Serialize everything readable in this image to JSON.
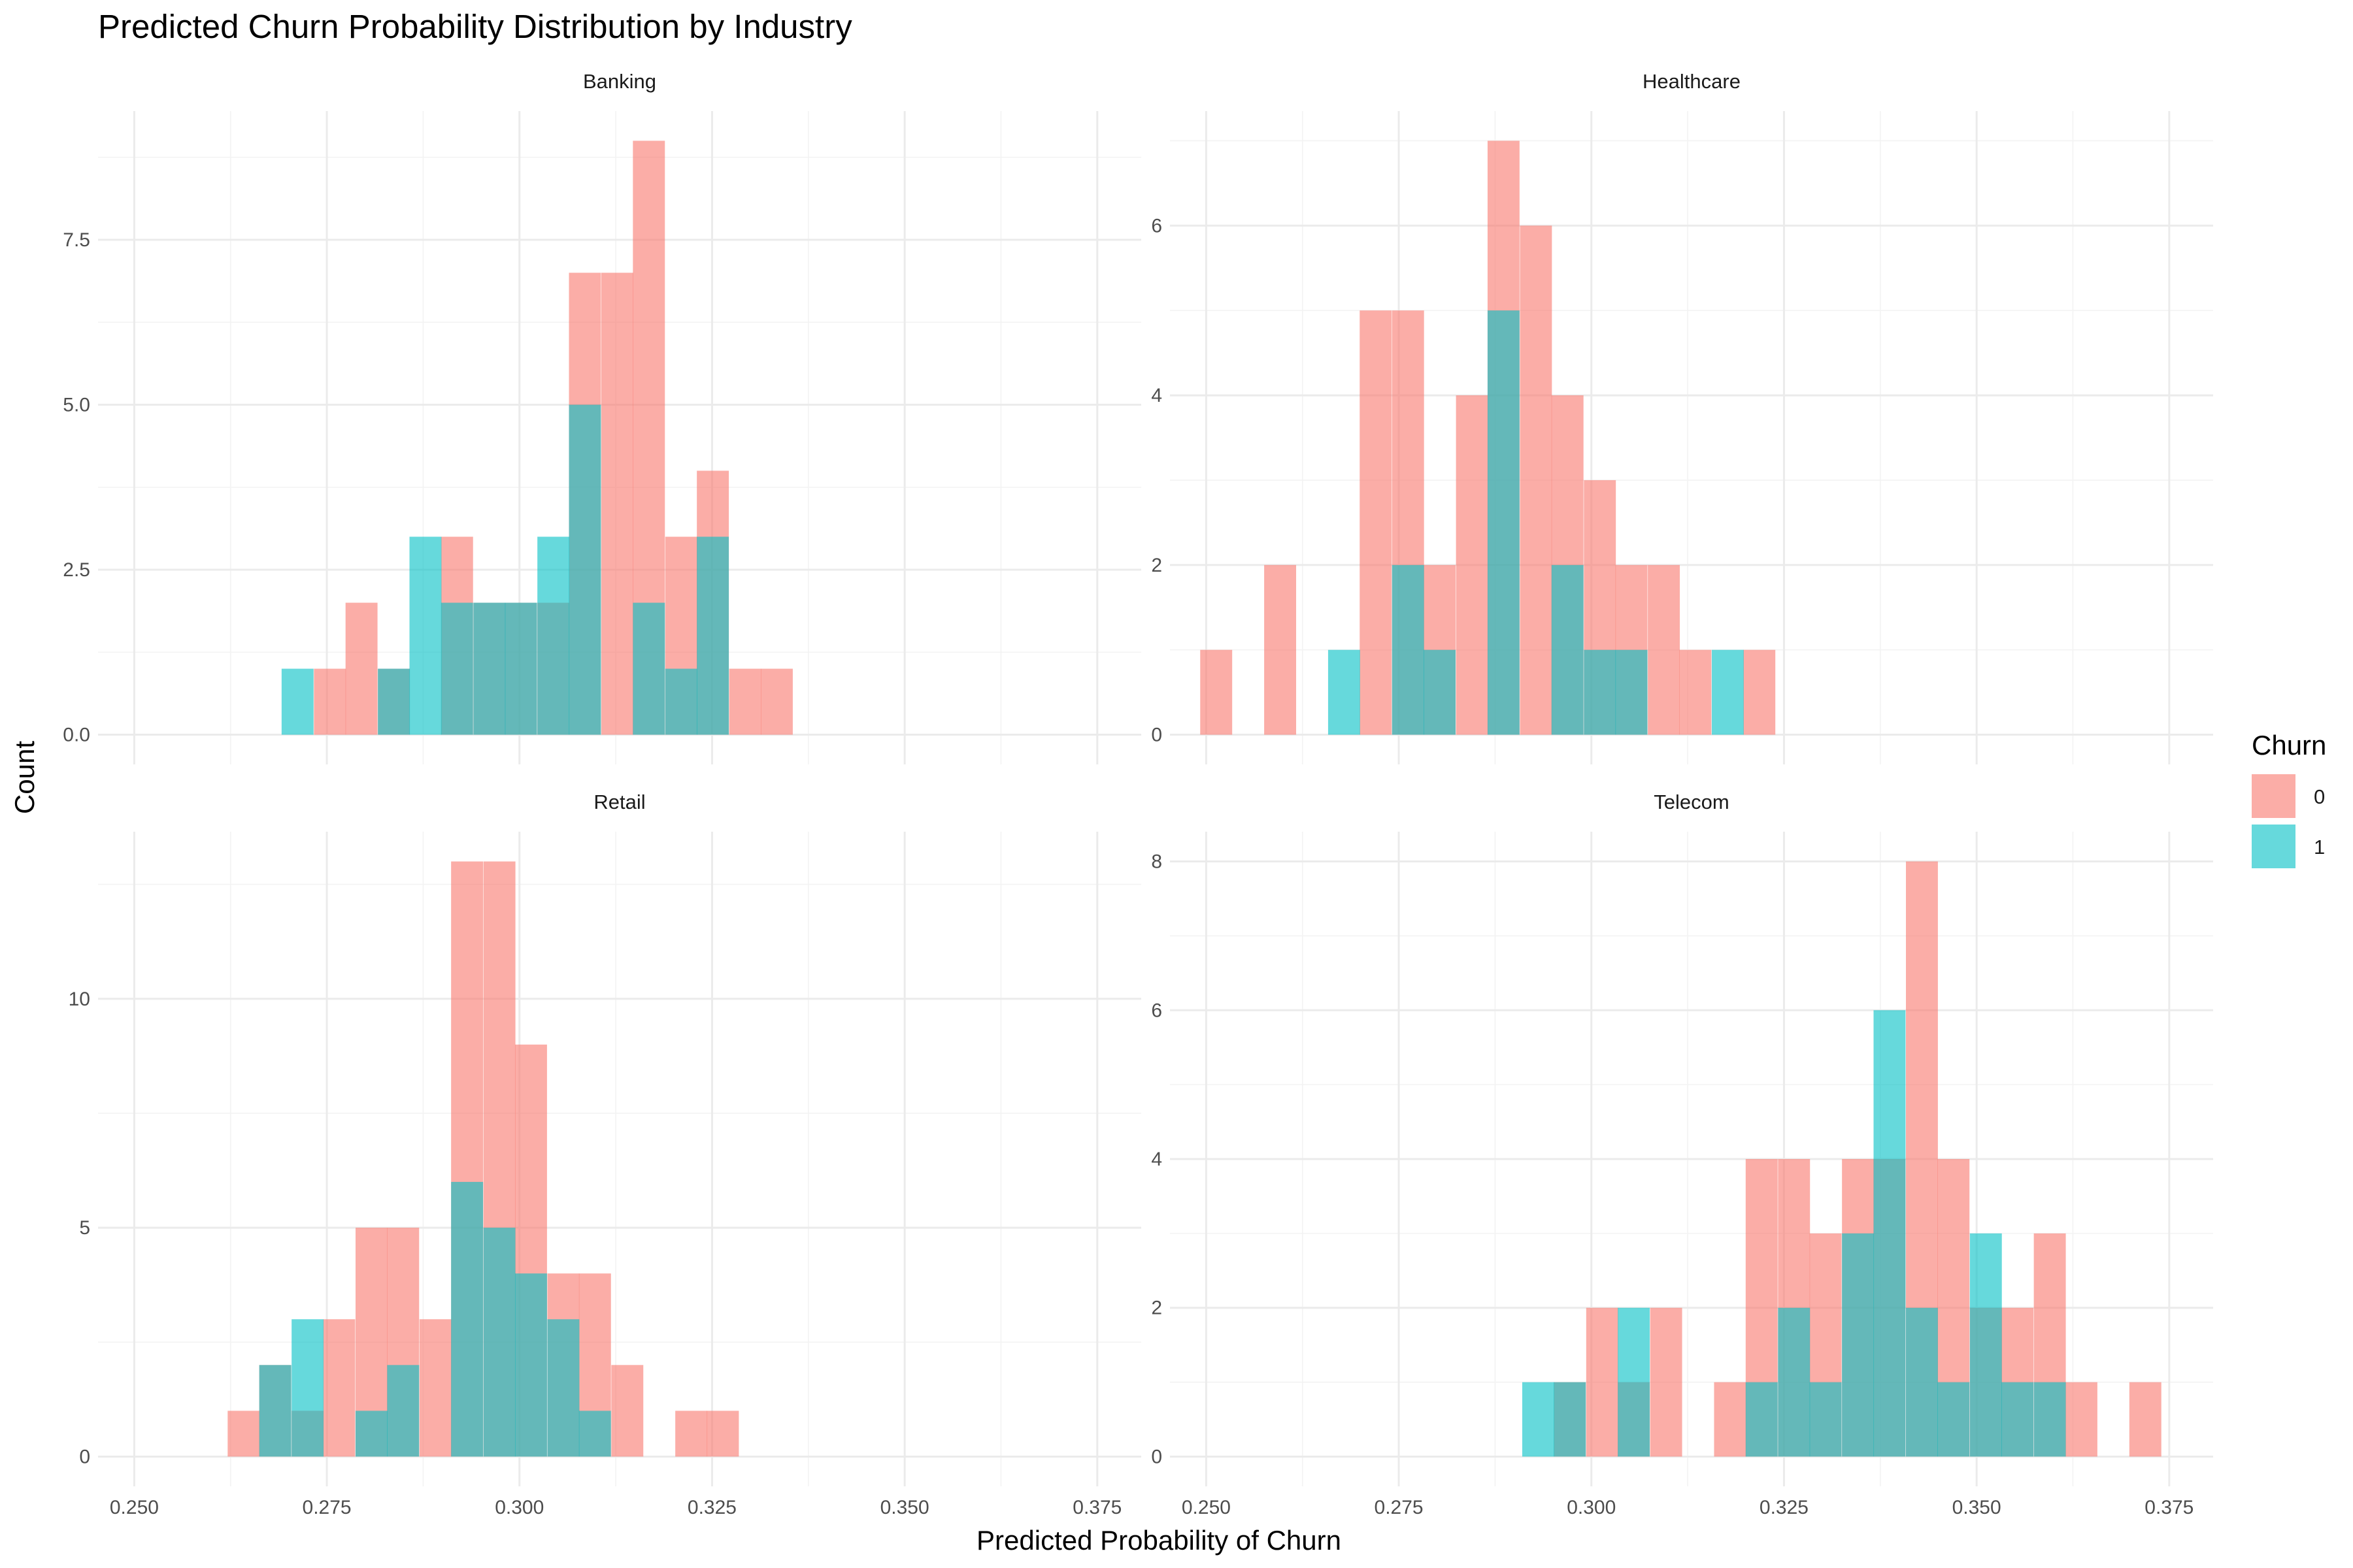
{
  "chart_data": {
    "type": "histogram",
    "title": "Predicted Churn Probability Distribution by Industry",
    "xlabel": "Predicted Probability of Churn",
    "ylabel": "Count",
    "xlim": [
      0.2453,
      0.3807
    ],
    "x_ticks": [
      0.25,
      0.275,
      0.3,
      0.325,
      0.35,
      0.375
    ],
    "x_tick_labels": [
      "0.250",
      "0.275",
      "0.300",
      "0.325",
      "0.350",
      "0.375"
    ],
    "bin_width": 0.00415,
    "legend": {
      "title": "Churn",
      "position": "right",
      "entries": [
        {
          "label": "0",
          "color": "#F8766D"
        },
        {
          "label": "1",
          "color": "#00BFC4"
        }
      ]
    },
    "facets": [
      {
        "label": "Banking",
        "ylim": [
          -0.45,
          9.45
        ],
        "y_ticks": [
          0,
          2.5,
          5,
          7.5
        ],
        "y_tick_labels": [
          "0.0",
          "2.5",
          "5.0",
          "7.5"
        ],
        "series": [
          {
            "name": "0",
            "bins": [
              [
                0.2754,
                1
              ],
              [
                0.2795,
                2
              ],
              [
                0.2837,
                1
              ],
              [
                0.2919,
                3
              ],
              [
                0.2961,
                2
              ],
              [
                0.3002,
                2
              ],
              [
                0.3044,
                2
              ],
              [
                0.3085,
                7
              ],
              [
                0.3127,
                7
              ],
              [
                0.3168,
                9
              ],
              [
                0.321,
                3
              ],
              [
                0.3251,
                4
              ],
              [
                0.3293,
                1
              ],
              [
                0.3334,
                1
              ]
            ]
          },
          {
            "name": "1",
            "bins": [
              [
                0.2712,
                1
              ],
              [
                0.2837,
                1
              ],
              [
                0.2878,
                3
              ],
              [
                0.2919,
                2
              ],
              [
                0.2961,
                2
              ],
              [
                0.3002,
                2
              ],
              [
                0.3044,
                3
              ],
              [
                0.3085,
                5
              ],
              [
                0.3168,
                2
              ],
              [
                0.321,
                1
              ],
              [
                0.3251,
                3
              ]
            ]
          }
        ]
      },
      {
        "label": "Healthcare",
        "ylim": [
          -0.35,
          7.35
        ],
        "y_ticks": [
          0,
          2,
          4,
          6
        ],
        "y_tick_labels": [
          "0",
          "2",
          "4",
          "6"
        ],
        "series": [
          {
            "name": "0",
            "bins": [
              [
                0.2513,
                1
              ],
              [
                0.2596,
                2
              ],
              [
                0.272,
                5
              ],
              [
                0.2762,
                5
              ],
              [
                0.2803,
                2
              ],
              [
                0.2845,
                4
              ],
              [
                0.2886,
                7
              ],
              [
                0.2928,
                6
              ],
              [
                0.2969,
                4
              ],
              [
                0.3011,
                3
              ],
              [
                0.3052,
                2
              ],
              [
                0.3094,
                2
              ],
              [
                0.3135,
                1
              ],
              [
                0.3218,
                1
              ]
            ]
          },
          {
            "name": "1",
            "bins": [
              [
                0.2679,
                1
              ],
              [
                0.2762,
                2
              ],
              [
                0.2803,
                1
              ],
              [
                0.2886,
                5
              ],
              [
                0.2969,
                2
              ],
              [
                0.3011,
                1
              ],
              [
                0.3052,
                1
              ],
              [
                0.3177,
                1
              ]
            ]
          }
        ]
      },
      {
        "label": "Retail",
        "ylim": [
          -0.65,
          13.65
        ],
        "y_ticks": [
          0,
          5,
          10
        ],
        "y_tick_labels": [
          "0",
          "5",
          "10"
        ],
        "series": [
          {
            "name": "0",
            "bins": [
              [
                0.2642,
                1
              ],
              [
                0.2683,
                2
              ],
              [
                0.2725,
                1
              ],
              [
                0.2766,
                3
              ],
              [
                0.2808,
                5
              ],
              [
                0.2849,
                5
              ],
              [
                0.2891,
                3
              ],
              [
                0.2932,
                13
              ],
              [
                0.2974,
                13
              ],
              [
                0.3015,
                9
              ],
              [
                0.3057,
                4
              ],
              [
                0.3098,
                4
              ],
              [
                0.314,
                2
              ],
              [
                0.3223,
                1
              ],
              [
                0.3264,
                1
              ]
            ]
          },
          {
            "name": "1",
            "bins": [
              [
                0.2683,
                2
              ],
              [
                0.2725,
                3
              ],
              [
                0.2808,
                1
              ],
              [
                0.2849,
                2
              ],
              [
                0.2932,
                6
              ],
              [
                0.2974,
                5
              ],
              [
                0.3015,
                4
              ],
              [
                0.3057,
                3
              ],
              [
                0.3098,
                1
              ]
            ]
          }
        ]
      },
      {
        "label": "Telecom",
        "ylim": [
          -0.4,
          8.4
        ],
        "y_ticks": [
          0,
          2,
          4,
          6,
          8
        ],
        "y_tick_labels": [
          "0",
          "2",
          "4",
          "6",
          "8"
        ],
        "series": [
          {
            "name": "0",
            "bins": [
              [
                0.2972,
                1
              ],
              [
                0.3014,
                2
              ],
              [
                0.3055,
                1
              ],
              [
                0.3097,
                2
              ],
              [
                0.318,
                1
              ],
              [
                0.3221,
                4
              ],
              [
                0.3263,
                4
              ],
              [
                0.3304,
                3
              ],
              [
                0.3346,
                4
              ],
              [
                0.3387,
                4
              ],
              [
                0.3429,
                8
              ],
              [
                0.347,
                4
              ],
              [
                0.3512,
                2
              ],
              [
                0.3553,
                2
              ],
              [
                0.3595,
                3
              ],
              [
                0.3636,
                1
              ],
              [
                0.3719,
                1
              ]
            ]
          },
          {
            "name": "1",
            "bins": [
              [
                0.2931,
                1
              ],
              [
                0.2972,
                1
              ],
              [
                0.3055,
                2
              ],
              [
                0.3221,
                1
              ],
              [
                0.3263,
                2
              ],
              [
                0.3304,
                1
              ],
              [
                0.3346,
                3
              ],
              [
                0.3387,
                6
              ],
              [
                0.3429,
                2
              ],
              [
                0.347,
                1
              ],
              [
                0.3512,
                3
              ],
              [
                0.3553,
                1
              ],
              [
                0.3595,
                1
              ]
            ]
          }
        ]
      }
    ]
  }
}
